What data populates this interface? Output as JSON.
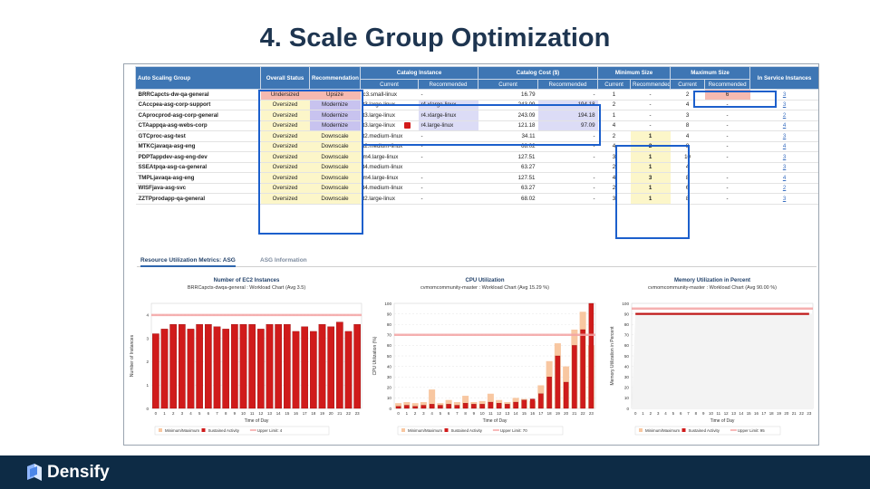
{
  "slide": {
    "title": "4. Scale Group Optimization"
  },
  "table": {
    "group_headers": [
      "Auto Scaling Group",
      "Overall Status",
      "Recommendation",
      "Catalog Instance",
      "Catalog Cost ($)",
      "Minimum Size",
      "Maximum Size",
      "In Service Instances"
    ],
    "sub_headers": [
      "Current",
      "Recommended",
      "Current",
      "Recommended",
      "Current",
      "Recommended",
      "Current",
      "Recommended"
    ],
    "rows": [
      {
        "name": "BRRCapcts-dw-qa-general",
        "status": "Undersized",
        "rec": "Upsize",
        "ci_cur": "c3.small-linux",
        "ci_rec": "-",
        "cost_cur": "16.79",
        "cost_rec": "-",
        "min_cur": "1",
        "min_rec": "-",
        "max_cur": "2",
        "max_rec": "6",
        "inst": "3"
      },
      {
        "name": "CAccpea-asg-corp-support",
        "status": "Oversized",
        "rec": "Modernize",
        "ci_cur": "t3.large-linux",
        "ci_rec": "r4.xlarge-linux",
        "cost_cur": "243.09",
        "cost_rec": "194.18",
        "min_cur": "2",
        "min_rec": "-",
        "max_cur": "4",
        "max_rec": "-",
        "inst": "3"
      },
      {
        "name": "CAprocprod-asg-corp-general",
        "status": "Oversized",
        "rec": "Modernize",
        "ci_cur": "t3.large-linux",
        "ci_rec": "r4.xlarge-linux",
        "cost_cur": "243.09",
        "cost_rec": "194.18",
        "min_cur": "1",
        "min_rec": "-",
        "max_cur": "3",
        "max_rec": "-",
        "inst": "2"
      },
      {
        "name": "CTAappqa-asg-webs-corp",
        "status": "Oversized",
        "rec": "Modernize",
        "ci_cur": "t3.large-linux",
        "ci_rec": "r4.large-linux",
        "cost_cur": "121.18",
        "cost_rec": "97.09",
        "min_cur": "4",
        "min_rec": "-",
        "max_cur": "8",
        "max_rec": "-",
        "inst": "4"
      },
      {
        "name": "GTCproc-asg-test",
        "status": "Oversized",
        "rec": "Downscale",
        "ci_cur": "t2.medium-linux",
        "ci_rec": "-",
        "cost_cur": "34.11",
        "cost_rec": "-",
        "min_cur": "2",
        "min_rec": "1",
        "max_cur": "4",
        "max_rec": "-",
        "inst": "3"
      },
      {
        "name": "MTKCjavaqa-asg-eng",
        "status": "Oversized",
        "rec": "Downscale",
        "ci_cur": "t2.medium-linux",
        "ci_rec": "-",
        "cost_cur": "68.02",
        "cost_rec": "-",
        "min_cur": "4",
        "min_rec": "2",
        "max_cur": "8",
        "max_rec": "-",
        "inst": "4"
      },
      {
        "name": "PDPTappdev-asg-eng-dev",
        "status": "Oversized",
        "rec": "Downscale",
        "ci_cur": "m4.large-linux",
        "ci_rec": "-",
        "cost_cur": "127.51",
        "cost_rec": "-",
        "min_cur": "3",
        "min_rec": "1",
        "max_cur": "10",
        "max_rec": "-",
        "inst": "3"
      },
      {
        "name": "SSEAtpqa-asg-ca-general",
        "status": "Oversized",
        "rec": "Downscale",
        "ci_cur": "t4.medium-linux",
        "ci_rec": "",
        "cost_cur": "63.27",
        "cost_rec": "",
        "min_cur": "2",
        "min_rec": "1",
        "max_cur": "4",
        "max_rec": "",
        "inst": "3"
      },
      {
        "name": "TMPLjavaqa-asg-eng",
        "status": "Oversized",
        "rec": "Downscale",
        "ci_cur": "m4.large-linux",
        "ci_rec": "-",
        "cost_cur": "127.51",
        "cost_rec": "-",
        "min_cur": "4",
        "min_rec": "3",
        "max_cur": "8",
        "max_rec": "-",
        "inst": "4"
      },
      {
        "name": "WISFjava-asg-svc",
        "status": "Oversized",
        "rec": "Downscale",
        "ci_cur": "t4.medium-linux",
        "ci_rec": "-",
        "cost_cur": "63.27",
        "cost_rec": "-",
        "min_cur": "2",
        "min_rec": "1",
        "max_cur": "6",
        "max_rec": "-",
        "inst": "2"
      },
      {
        "name": "ZZTPprodapp-qa-general",
        "status": "Oversized",
        "rec": "Downscale",
        "ci_cur": "t2.large-linux",
        "ci_rec": "-",
        "cost_cur": "68.02",
        "cost_rec": "-",
        "min_cur": "3",
        "min_rec": "1",
        "max_cur": "8",
        "max_rec": "-",
        "inst": "3"
      }
    ]
  },
  "tabs": {
    "active": "Resource Utilization Metrics: ASG",
    "inactive": "ASG Information"
  },
  "chart_data": [
    {
      "type": "bar",
      "title": "Number of EC2 Instances",
      "subtitle": "BRRCapcts-dwqa-general : Workload Chart (Avg 3.5)",
      "xlabel": "Time of Day",
      "ylabel": "Number of Instances",
      "categories": [
        "0",
        "1",
        "2",
        "3",
        "4",
        "5",
        "6",
        "7",
        "8",
        "9",
        "10",
        "11",
        "12",
        "13",
        "14",
        "15",
        "16",
        "17",
        "18",
        "19",
        "20",
        "21",
        "22",
        "23"
      ],
      "ylim": [
        0,
        4.5
      ],
      "yticks": [
        "0",
        "1",
        "2",
        "3",
        "4"
      ],
      "series": [
        {
          "name": "Minimum/Maximum",
          "values": [
            3.2,
            3.4,
            3.6,
            3.6,
            3.4,
            3.6,
            3.6,
            3.5,
            3.4,
            3.6,
            3.6,
            3.6,
            3.4,
            3.6,
            3.6,
            3.6,
            3.3,
            3.5,
            3.3,
            3.6,
            3.5,
            3.7,
            3.3,
            3.6
          ]
        },
        {
          "name": "Sustained Activity",
          "values": [
            3.2,
            3.4,
            3.6,
            3.6,
            3.4,
            3.6,
            3.6,
            3.5,
            3.4,
            3.6,
            3.6,
            3.6,
            3.4,
            3.6,
            3.6,
            3.6,
            3.3,
            3.5,
            3.3,
            3.6,
            3.5,
            3.7,
            3.3,
            3.6
          ]
        }
      ],
      "upper_limit": 4,
      "legend": [
        "Minimum/Maximum",
        "Sustained Activity",
        "Upper Limit: 4"
      ]
    },
    {
      "type": "bar",
      "title": "CPU Utilization",
      "subtitle": "cvmomcommunity-master : Workload Chart (Avg 15.29 %)",
      "xlabel": "Time of Day",
      "ylabel": "CPU Utilization (%)",
      "categories": [
        "0",
        "1",
        "2",
        "3",
        "4",
        "5",
        "6",
        "7",
        "8",
        "9",
        "10",
        "11",
        "12",
        "13",
        "14",
        "15",
        "16",
        "17",
        "18",
        "19",
        "20",
        "21",
        "22",
        "23"
      ],
      "ylim": [
        0,
        100
      ],
      "yticks": [
        "0",
        "10",
        "20",
        "30",
        "40",
        "50",
        "60",
        "70",
        "80",
        "90",
        "100"
      ],
      "series": [
        {
          "name": "Minimum/Maximum",
          "values": [
            5,
            6,
            5,
            6,
            18,
            5,
            8,
            6,
            12,
            6,
            7,
            14,
            8,
            6,
            10,
            9,
            7,
            22,
            45,
            62,
            40,
            75,
            92,
            60
          ]
        },
        {
          "name": "Sustained Activity",
          "values": [
            2,
            3,
            2,
            3,
            4,
            3,
            4,
            3,
            5,
            4,
            4,
            6,
            5,
            4,
            6,
            8,
            9,
            14,
            30,
            50,
            25,
            60,
            75,
            100
          ]
        }
      ],
      "upper_limit": 70,
      "legend": [
        "Minimum/Maximum",
        "Sustained Activity",
        "Upper Limit: 70"
      ]
    },
    {
      "type": "area",
      "title": "Memory Utilization in Percent",
      "subtitle": "cvmomcommunity-master : Workload Chart (Avg 90.00 %)",
      "xlabel": "Time of Day",
      "ylabel": "Memory Utilization in Percent",
      "categories": [
        "0",
        "1",
        "2",
        "3",
        "4",
        "5",
        "6",
        "7",
        "8",
        "9",
        "10",
        "11",
        "12",
        "13",
        "14",
        "15",
        "16",
        "17",
        "18",
        "19",
        "20",
        "21",
        "22",
        "23"
      ],
      "ylim": [
        0,
        100
      ],
      "yticks": [
        "0",
        "10",
        "20",
        "30",
        "40",
        "50",
        "60",
        "70",
        "80",
        "90",
        "100"
      ],
      "series": [
        {
          "name": "Sustained Activity",
          "values": [
            90,
            90,
            90,
            90,
            90,
            90,
            90,
            90,
            90,
            90,
            90,
            90,
            90,
            90,
            90,
            90,
            90,
            90,
            90,
            90,
            90,
            90,
            90,
            90
          ]
        }
      ],
      "upper_limit": 95,
      "legend": [
        "Minimum/Maximum",
        "Sustained Activity",
        "Upper Limit: 95"
      ]
    }
  ],
  "footer": {
    "brand": "Densify"
  },
  "colors": {
    "header_blue": "#3e76b4",
    "bar_red": "#d01b1b",
    "bar_peach": "#f8c7a1",
    "limit_pink": "#f4a3a3",
    "footer_navy": "#0d2b45",
    "highlight_blue": "#1c5fcc"
  }
}
